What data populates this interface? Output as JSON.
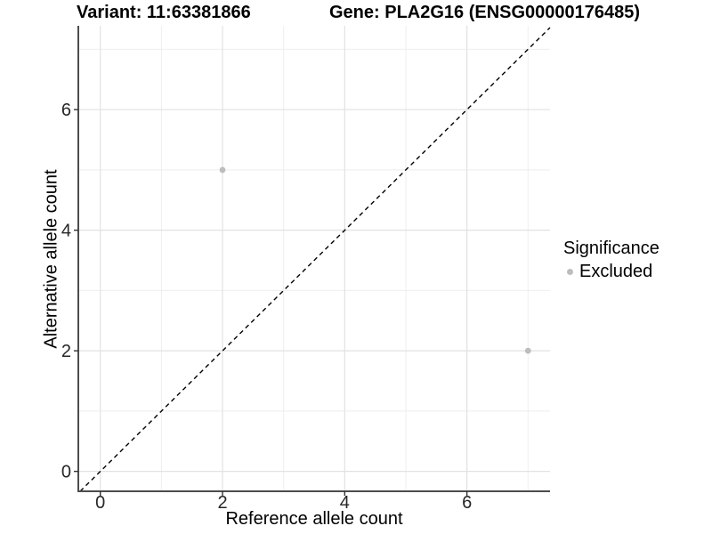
{
  "chart_data": {
    "type": "scatter",
    "titles": {
      "left": "Variant: 11:63381866",
      "right": "Gene: PLA2G16 (ENSG00000176485)"
    },
    "xlabel": "Reference allele count",
    "ylabel": "Alternative allele count",
    "xlim": [
      -0.36,
      7.36
    ],
    "ylim": [
      -0.33,
      7.39
    ],
    "xticks": [
      0,
      2,
      4,
      6
    ],
    "yticks": [
      0,
      2,
      4,
      6
    ],
    "xminor": [
      1,
      3,
      5,
      7
    ],
    "yminor": [
      1,
      3,
      5,
      7
    ],
    "grid": "major+minor",
    "series": [
      {
        "name": "Excluded",
        "color": "#bdbdbd",
        "points": [
          {
            "x": 2,
            "y": 5
          },
          {
            "x": 7,
            "y": 2
          }
        ]
      }
    ],
    "reference_line": {
      "slope": 1,
      "intercept": 0,
      "style": "dashed",
      "color": "#000000"
    },
    "legend": {
      "title": "Significance",
      "position": "right",
      "items": [
        {
          "label": "Excluded",
          "color": "#bdbdbd"
        }
      ]
    },
    "colors": {
      "background": "#ffffff",
      "grid_major": "#e2e2e2",
      "grid_minor": "#eeeeee",
      "axis_line": "#4d4d4d",
      "tick_mark": "#333333",
      "tick_text": "#262626",
      "title_text": "#000000"
    }
  }
}
